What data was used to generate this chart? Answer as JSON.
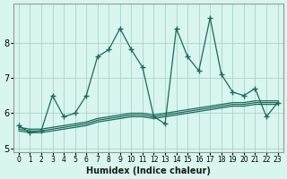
{
  "xlabel": "Humidex (Indice chaleur)",
  "ylabel": "",
  "background_color": "#d8f5f0",
  "grid_color": "#b0d8d0",
  "line_color": "#1a6b5a",
  "x_values": [
    0,
    1,
    2,
    3,
    4,
    5,
    6,
    7,
    8,
    9,
    10,
    11,
    12,
    13,
    14,
    15,
    16,
    17,
    18,
    19,
    20,
    21,
    22,
    23
  ],
  "y_main": [
    5.65,
    5.45,
    5.5,
    6.5,
    5.9,
    6.0,
    6.5,
    7.6,
    7.8,
    8.4,
    7.8,
    7.3,
    5.9,
    5.7,
    8.4,
    7.6,
    7.2,
    8.7,
    7.1,
    6.6,
    6.5,
    6.7,
    5.9,
    6.3
  ],
  "y_line1": [
    5.6,
    5.55,
    5.55,
    5.6,
    5.65,
    5.7,
    5.75,
    5.85,
    5.9,
    5.95,
    6.0,
    6.0,
    5.95,
    6.0,
    6.05,
    6.1,
    6.15,
    6.2,
    6.25,
    6.3,
    6.3,
    6.35,
    6.35,
    6.35
  ],
  "y_line2": [
    5.55,
    5.5,
    5.5,
    5.55,
    5.6,
    5.65,
    5.7,
    5.8,
    5.85,
    5.9,
    5.95,
    5.95,
    5.9,
    5.95,
    6.0,
    6.05,
    6.1,
    6.15,
    6.2,
    6.25,
    6.25,
    6.3,
    6.3,
    6.3
  ],
  "y_line3": [
    5.5,
    5.45,
    5.45,
    5.5,
    5.55,
    5.6,
    5.65,
    5.75,
    5.8,
    5.85,
    5.9,
    5.9,
    5.85,
    5.9,
    5.95,
    6.0,
    6.05,
    6.1,
    6.15,
    6.2,
    6.2,
    6.25,
    6.25,
    6.25
  ],
  "xlim": [
    -0.5,
    23.5
  ],
  "ylim": [
    4.9,
    9.1
  ],
  "yticks": [
    5,
    6,
    7,
    8
  ],
  "xtick_labels": [
    "0",
    "1",
    "2",
    "3",
    "4",
    "5",
    "6",
    "7",
    "8",
    "9",
    "10",
    "11",
    "12",
    "13",
    "14",
    "15",
    "16",
    "17",
    "18",
    "19",
    "20",
    "21",
    "22",
    "23"
  ]
}
